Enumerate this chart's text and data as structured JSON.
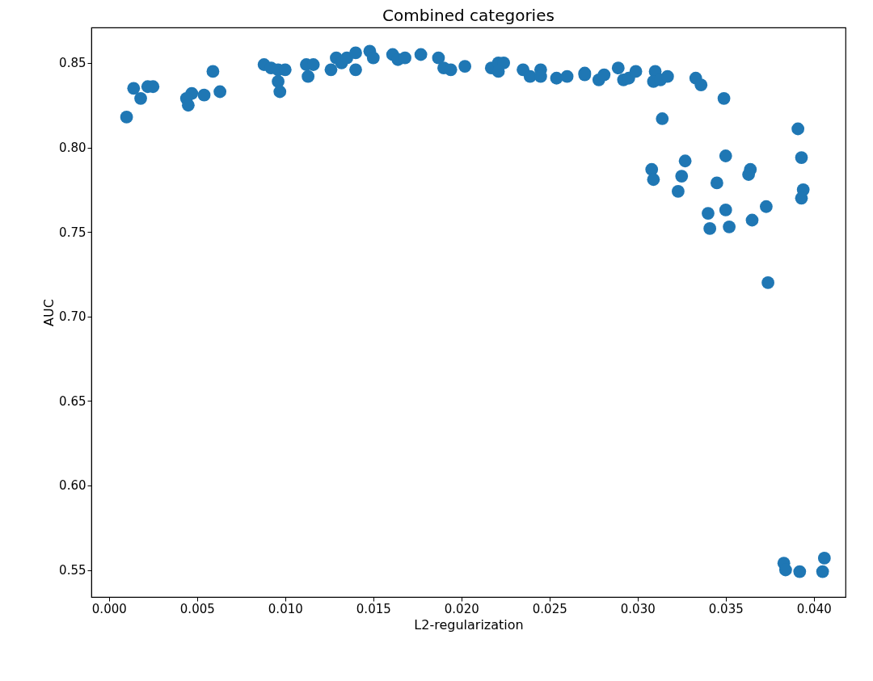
{
  "chart_data": {
    "type": "scatter",
    "title": "Combined categories",
    "xlabel": "L2-regularization",
    "ylabel": "AUC",
    "x": [
      0.001,
      0.0014,
      0.0018,
      0.0022,
      0.0025,
      0.0047,
      0.0044,
      0.0045,
      0.0054,
      0.0059,
      0.0063,
      0.0088,
      0.0092,
      0.0096,
      0.01,
      0.0096,
      0.0097,
      0.0112,
      0.0116,
      0.0113,
      0.0126,
      0.0129,
      0.0132,
      0.0135,
      0.014,
      0.014,
      0.0148,
      0.015,
      0.0161,
      0.0164,
      0.0168,
      0.0177,
      0.0187,
      0.019,
      0.0194,
      0.0202,
      0.0217,
      0.0221,
      0.0224,
      0.0221,
      0.0235,
      0.0239,
      0.0245,
      0.0245,
      0.0254,
      0.026,
      0.027,
      0.027,
      0.0278,
      0.0281,
      0.0289,
      0.0292,
      0.0295,
      0.0299,
      0.031,
      0.0309,
      0.0313,
      0.0317,
      0.0333,
      0.0336,
      0.0349,
      0.0314,
      0.0391,
      0.035,
      0.0393,
      0.0327,
      0.0308,
      0.0309,
      0.0325,
      0.0323,
      0.0364,
      0.0363,
      0.0345,
      0.0394,
      0.0393,
      0.0373,
      0.035,
      0.034,
      0.0365,
      0.0341,
      0.0352,
      0.0374,
      0.0383,
      0.0384,
      0.0392,
      0.0406,
      0.0405
    ],
    "series": [
      {
        "color": "#1f77b4",
        "values": [
          0.818,
          0.835,
          0.829,
          0.836,
          0.836,
          0.832,
          0.829,
          0.825,
          0.831,
          0.845,
          0.833,
          0.849,
          0.847,
          0.846,
          0.846,
          0.839,
          0.833,
          0.849,
          0.849,
          0.842,
          0.846,
          0.853,
          0.85,
          0.853,
          0.856,
          0.846,
          0.857,
          0.853,
          0.855,
          0.852,
          0.853,
          0.855,
          0.853,
          0.847,
          0.846,
          0.848,
          0.847,
          0.85,
          0.85,
          0.845,
          0.846,
          0.842,
          0.846,
          0.842,
          0.841,
          0.842,
          0.844,
          0.843,
          0.84,
          0.843,
          0.847,
          0.84,
          0.841,
          0.845,
          0.845,
          0.839,
          0.84,
          0.842,
          0.841,
          0.837,
          0.829,
          0.817,
          0.811,
          0.795,
          0.794,
          0.792,
          0.787,
          0.781,
          0.783,
          0.774,
          0.787,
          0.784,
          0.779,
          0.775,
          0.77,
          0.765,
          0.763,
          0.761,
          0.757,
          0.752,
          0.753,
          0.72,
          0.554,
          0.55,
          0.549,
          0.557,
          0.549
        ]
      }
    ],
    "marker": "circle",
    "xlim": [
      -0.001,
      0.0418
    ],
    "ylim": [
      0.534,
      0.871
    ],
    "xticks": [
      {
        "value": 0,
        "label": "0.000"
      },
      {
        "value": 0.005,
        "label": "0.005"
      },
      {
        "value": 0.01,
        "label": "0.010"
      },
      {
        "value": 0.015,
        "label": "0.015"
      },
      {
        "value": 0.02,
        "label": "0.020"
      },
      {
        "value": 0.025,
        "label": "0.025"
      },
      {
        "value": 0.03,
        "label": "0.030"
      },
      {
        "value": 0.035,
        "label": "0.035"
      },
      {
        "value": 0.04,
        "label": "0.040"
      }
    ],
    "yticks": [
      {
        "value": 0.55,
        "label": "0.55"
      },
      {
        "value": 0.6,
        "label": "0.60"
      },
      {
        "value": 0.65,
        "label": "0.65"
      },
      {
        "value": 0.7,
        "label": "0.70"
      },
      {
        "value": 0.75,
        "label": "0.75"
      },
      {
        "value": 0.8,
        "label": "0.80"
      },
      {
        "value": 0.85,
        "label": "0.85"
      }
    ],
    "grid": false,
    "legend": false
  }
}
